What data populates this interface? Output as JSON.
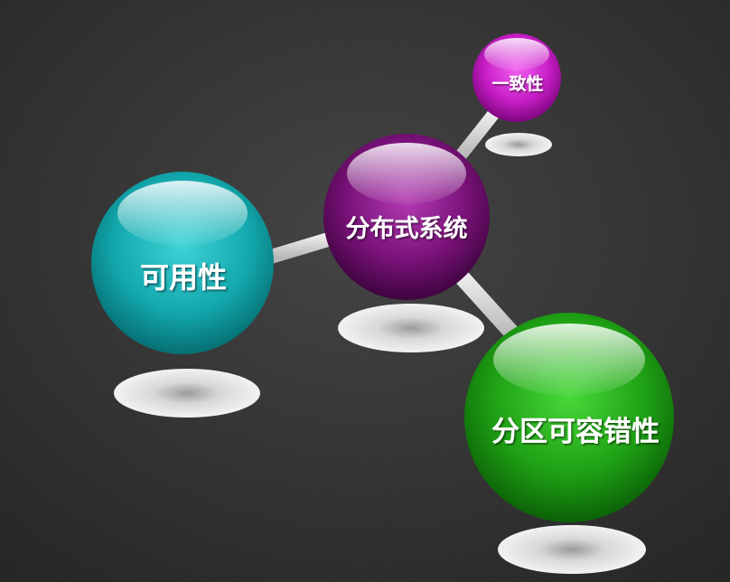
{
  "diagram": {
    "center": {
      "label": "分布式系统"
    },
    "nodes": [
      {
        "id": "consistency",
        "label": "一致性"
      },
      {
        "id": "availability",
        "label": "可用性"
      },
      {
        "id": "partition",
        "label": "分区可容错性"
      }
    ]
  },
  "colors": {
    "background": "#2c2c2c",
    "center_sphere": "#7a1a7a",
    "consistency_sphere": "#c81ec8",
    "availability_sphere": "#12a8ad",
    "partition_sphere": "#1ea014",
    "connector": "#d8d8d8",
    "shadow": "#e6e6e6",
    "text": "#ffffff"
  }
}
